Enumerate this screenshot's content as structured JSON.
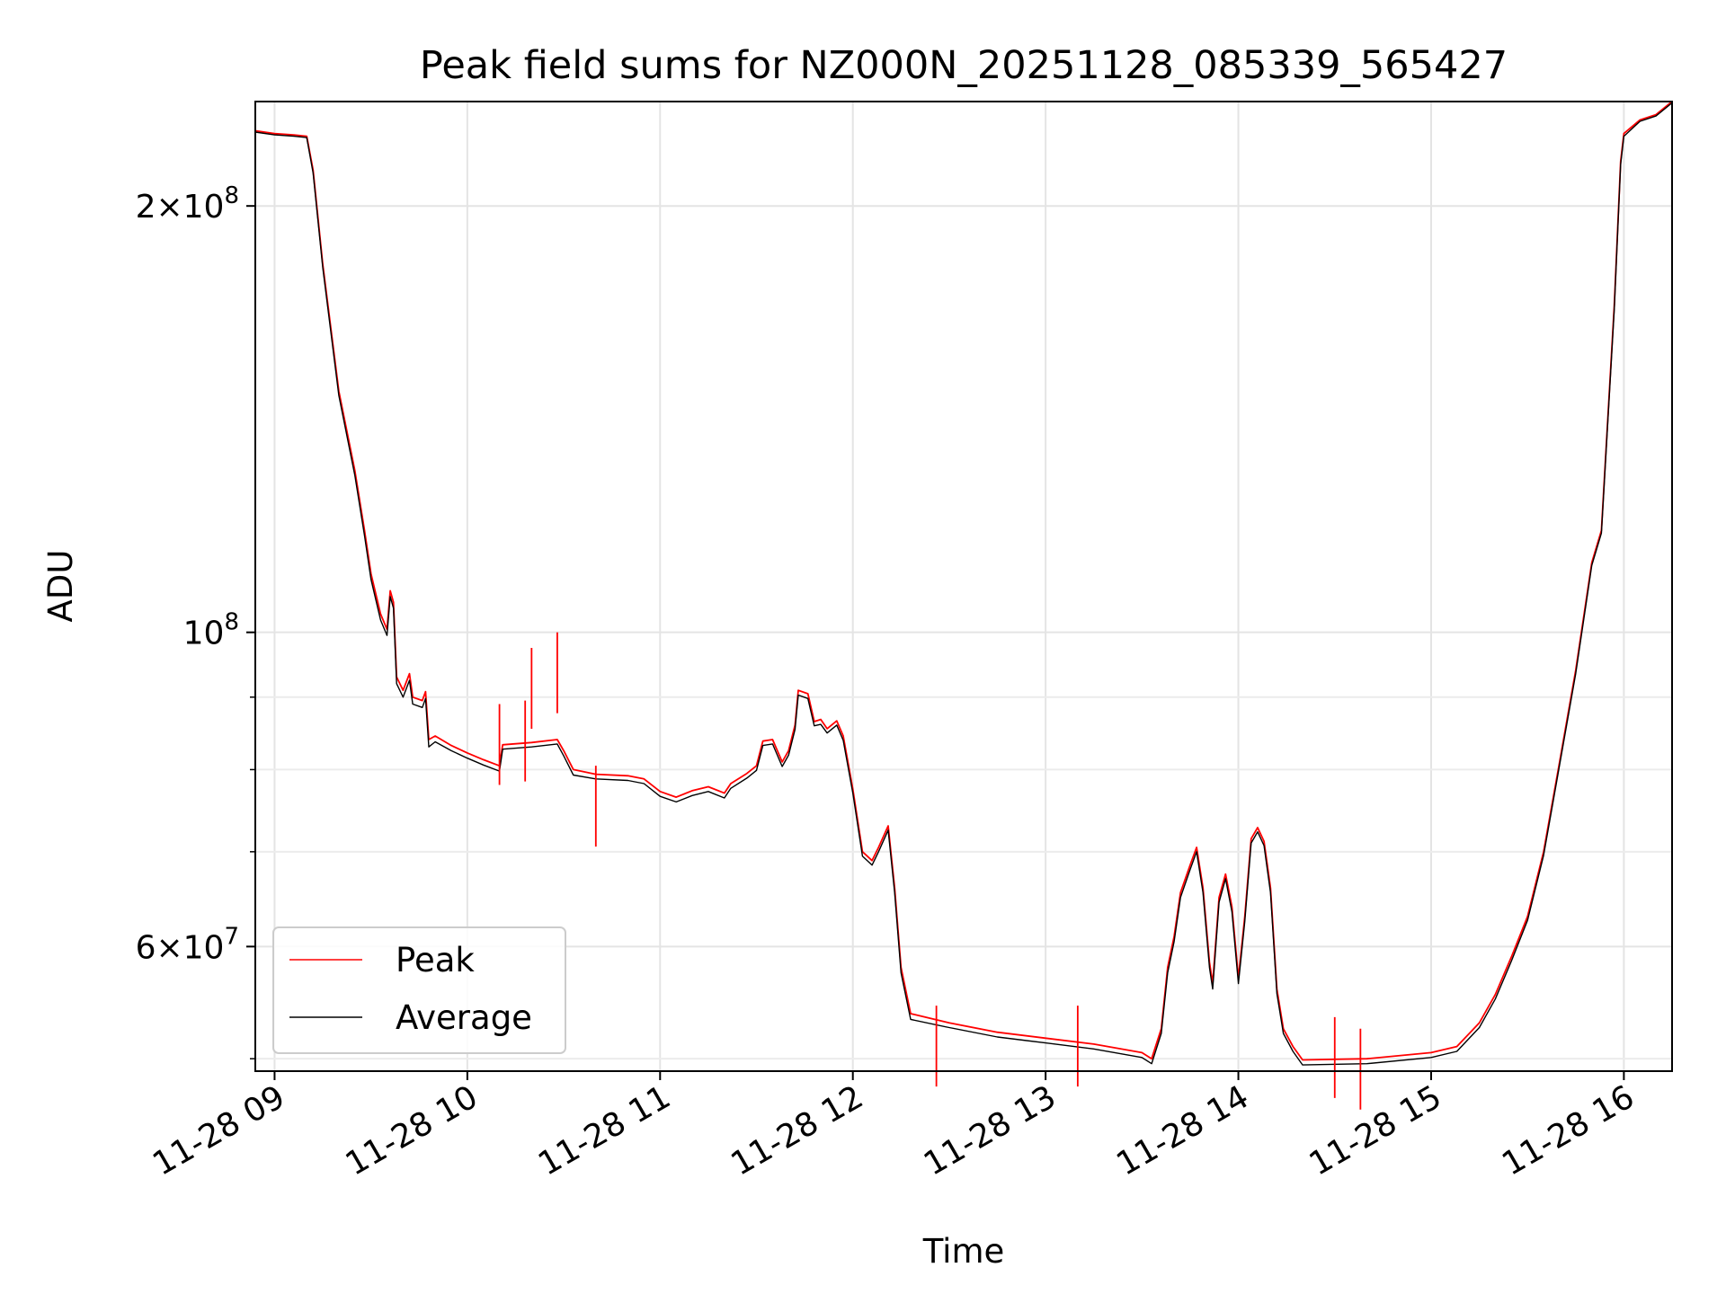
{
  "chart_data": {
    "type": "line",
    "title": "Peak field sums for NZ000N_20251128_085339_565427",
    "xlabel": "Time",
    "ylabel": "ADU",
    "y_scale": "log",
    "xlim": [
      "2025-11-28 08:54",
      "2025-11-28 16:15"
    ],
    "ylim": [
      49000000,
      237000000
    ],
    "grid": true,
    "legend_position": "lower-left",
    "x_ticks": [
      {
        "t": "2025-11-28 09:00",
        "label": "11-28 09"
      },
      {
        "t": "2025-11-28 10:00",
        "label": "11-28 10"
      },
      {
        "t": "2025-11-28 11:00",
        "label": "11-28 11"
      },
      {
        "t": "2025-11-28 12:00",
        "label": "11-28 12"
      },
      {
        "t": "2025-11-28 13:00",
        "label": "11-28 13"
      },
      {
        "t": "2025-11-28 14:00",
        "label": "11-28 14"
      },
      {
        "t": "2025-11-28 15:00",
        "label": "11-28 15"
      },
      {
        "t": "2025-11-28 16:00",
        "label": "11-28 16"
      }
    ],
    "y_major_ticks": [
      {
        "value": 60000000,
        "base": "6×10",
        "exp": "7"
      },
      {
        "value": 100000000,
        "base": "10",
        "exp": "8"
      },
      {
        "value": 200000000,
        "base": "2×10",
        "exp": "8"
      }
    ],
    "y_minor_ticks": [
      50000000,
      70000000,
      80000000,
      90000000
    ],
    "series": [
      {
        "name": "Peak",
        "color": "#ff0000",
        "points": [
          [
            "2025-11-28 08:54",
            226000000
          ],
          [
            "2025-11-28 09:00",
            225000000
          ],
          [
            "2025-11-28 09:06",
            224500000
          ],
          [
            "2025-11-28 09:10",
            224000000
          ],
          [
            "2025-11-28 09:12",
            212000000
          ],
          [
            "2025-11-28 09:15",
            182000000
          ],
          [
            "2025-11-28 09:20",
            148000000
          ],
          [
            "2025-11-28 09:25",
            130000000
          ],
          [
            "2025-11-28 09:28",
            118000000
          ],
          [
            "2025-11-28 09:30",
            110000000
          ],
          [
            "2025-11-28 09:33",
            103000000
          ],
          [
            "2025-11-28 09:35",
            100500000
          ],
          [
            "2025-11-28 09:36",
            107000000
          ],
          [
            "2025-11-28 09:37",
            105000000
          ],
          [
            "2025-11-28 09:38",
            93000000
          ],
          [
            "2025-11-28 09:40",
            91000000
          ],
          [
            "2025-11-28 09:42",
            93500000
          ],
          [
            "2025-11-28 09:43",
            90000000
          ],
          [
            "2025-11-28 09:46",
            89500000
          ],
          [
            "2025-11-28 09:47",
            90800000
          ],
          [
            "2025-11-28 09:48",
            84000000
          ],
          [
            "2025-11-28 09:50",
            84500000
          ],
          [
            "2025-11-28 09:55",
            83200000
          ],
          [
            "2025-11-28 10:00",
            82200000
          ],
          [
            "2025-11-28 10:05",
            81300000
          ],
          [
            "2025-11-28 10:10",
            80500000
          ],
          [
            "2025-11-28 10:11",
            83300000
          ],
          [
            "2025-11-28 10:20",
            83600000
          ],
          [
            "2025-11-28 10:28",
            84000000
          ],
          [
            "2025-11-28 10:30",
            82500000
          ],
          [
            "2025-11-28 10:33",
            80000000
          ],
          [
            "2025-11-28 10:40",
            79400000
          ],
          [
            "2025-11-28 10:50",
            79200000
          ],
          [
            "2025-11-28 10:55",
            78800000
          ],
          [
            "2025-11-28 11:00",
            77200000
          ],
          [
            "2025-11-28 11:05",
            76500000
          ],
          [
            "2025-11-28 11:10",
            77300000
          ],
          [
            "2025-11-28 11:15",
            77800000
          ],
          [
            "2025-11-28 11:20",
            77000000
          ],
          [
            "2025-11-28 11:22",
            78200000
          ],
          [
            "2025-11-28 11:27",
            79500000
          ],
          [
            "2025-11-28 11:30",
            80500000
          ],
          [
            "2025-11-28 11:32",
            83800000
          ],
          [
            "2025-11-28 11:35",
            84000000
          ],
          [
            "2025-11-28 11:38",
            81000000
          ],
          [
            "2025-11-28 11:40",
            82500000
          ],
          [
            "2025-11-28 11:42",
            86000000
          ],
          [
            "2025-11-28 11:43",
            91000000
          ],
          [
            "2025-11-28 11:46",
            90500000
          ],
          [
            "2025-11-28 11:48",
            86500000
          ],
          [
            "2025-11-28 11:50",
            86800000
          ],
          [
            "2025-11-28 11:52",
            85500000
          ],
          [
            "2025-11-28 11:55",
            86600000
          ],
          [
            "2025-11-28 11:57",
            84500000
          ],
          [
            "2025-11-28 12:00",
            77500000
          ],
          [
            "2025-11-28 12:03",
            70000000
          ],
          [
            "2025-11-28 12:06",
            69000000
          ],
          [
            "2025-11-28 12:08",
            70500000
          ],
          [
            "2025-11-28 12:11",
            73000000
          ],
          [
            "2025-11-28 12:13",
            66000000
          ],
          [
            "2025-11-28 12:15",
            58000000
          ],
          [
            "2025-11-28 12:18",
            53800000
          ],
          [
            "2025-11-28 12:30",
            53000000
          ],
          [
            "2025-11-28 12:45",
            52200000
          ],
          [
            "2025-11-28 13:00",
            51700000
          ],
          [
            "2025-11-28 13:15",
            51200000
          ],
          [
            "2025-11-28 13:30",
            50500000
          ],
          [
            "2025-11-28 13:33",
            50000000
          ],
          [
            "2025-11-28 13:36",
            52500000
          ],
          [
            "2025-11-28 13:38",
            58000000
          ],
          [
            "2025-11-28 13:40",
            61000000
          ],
          [
            "2025-11-28 13:42",
            65500000
          ],
          [
            "2025-11-28 13:45",
            68500000
          ],
          [
            "2025-11-28 13:47",
            70500000
          ],
          [
            "2025-11-28 13:49",
            66000000
          ],
          [
            "2025-11-28 13:51",
            58500000
          ],
          [
            "2025-11-28 13:52",
            56500000
          ],
          [
            "2025-11-28 13:54",
            65000000
          ],
          [
            "2025-11-28 13:56",
            67500000
          ],
          [
            "2025-11-28 13:58",
            64000000
          ],
          [
            "2025-11-28 14:00",
            57000000
          ],
          [
            "2025-11-28 14:02",
            63000000
          ],
          [
            "2025-11-28 14:04",
            71500000
          ],
          [
            "2025-11-28 14:06",
            72800000
          ],
          [
            "2025-11-28 14:08",
            71200000
          ],
          [
            "2025-11-28 14:10",
            66000000
          ],
          [
            "2025-11-28 14:12",
            56000000
          ],
          [
            "2025-11-28 14:14",
            52500000
          ],
          [
            "2025-11-28 14:17",
            51000000
          ],
          [
            "2025-11-28 14:20",
            49900000
          ],
          [
            "2025-11-28 14:40",
            50000000
          ],
          [
            "2025-11-28 15:00",
            50500000
          ],
          [
            "2025-11-28 15:08",
            51000000
          ],
          [
            "2025-11-28 15:15",
            53000000
          ],
          [
            "2025-11-28 15:20",
            55500000
          ],
          [
            "2025-11-28 15:25",
            59000000
          ],
          [
            "2025-11-28 15:30",
            63000000
          ],
          [
            "2025-11-28 15:35",
            70000000
          ],
          [
            "2025-11-28 15:40",
            81000000
          ],
          [
            "2025-11-28 15:45",
            94000000
          ],
          [
            "2025-11-28 15:50",
            112000000
          ],
          [
            "2025-11-28 15:53",
            118000000
          ],
          [
            "2025-11-28 15:57",
            170000000
          ],
          [
            "2025-11-28 15:59",
            215000000
          ],
          [
            "2025-11-28 16:00",
            225000000
          ],
          [
            "2025-11-28 16:05",
            230000000
          ],
          [
            "2025-11-28 16:10",
            232000000
          ],
          [
            "2025-11-28 16:15",
            237000000
          ]
        ]
      },
      {
        "name": "Average",
        "color": "#000000",
        "points": [
          [
            "2025-11-28 08:54",
            225500000
          ],
          [
            "2025-11-28 09:00",
            224500000
          ],
          [
            "2025-11-28 09:06",
            224000000
          ],
          [
            "2025-11-28 09:10",
            223500000
          ],
          [
            "2025-11-28 09:12",
            211000000
          ],
          [
            "2025-11-28 09:15",
            181000000
          ],
          [
            "2025-11-28 09:20",
            147000000
          ],
          [
            "2025-11-28 09:25",
            129000000
          ],
          [
            "2025-11-28 09:28",
            117000000
          ],
          [
            "2025-11-28 09:30",
            109000000
          ],
          [
            "2025-11-28 09:33",
            102000000
          ],
          [
            "2025-11-28 09:35",
            99500000
          ],
          [
            "2025-11-28 09:36",
            106000000
          ],
          [
            "2025-11-28 09:37",
            104000000
          ],
          [
            "2025-11-28 09:38",
            92000000
          ],
          [
            "2025-11-28 09:40",
            90000000
          ],
          [
            "2025-11-28 09:42",
            92500000
          ],
          [
            "2025-11-28 09:43",
            89000000
          ],
          [
            "2025-11-28 09:46",
            88500000
          ],
          [
            "2025-11-28 09:47",
            89800000
          ],
          [
            "2025-11-28 09:48",
            83000000
          ],
          [
            "2025-11-28 09:50",
            83700000
          ],
          [
            "2025-11-28 09:55",
            82500000
          ],
          [
            "2025-11-28 10:00",
            81500000
          ],
          [
            "2025-11-28 10:05",
            80600000
          ],
          [
            "2025-11-28 10:10",
            79800000
          ],
          [
            "2025-11-28 10:11",
            82700000
          ],
          [
            "2025-11-28 10:20",
            83000000
          ],
          [
            "2025-11-28 10:28",
            83400000
          ],
          [
            "2025-11-28 10:30",
            81800000
          ],
          [
            "2025-11-28 10:33",
            79300000
          ],
          [
            "2025-11-28 10:40",
            78800000
          ],
          [
            "2025-11-28 10:50",
            78600000
          ],
          [
            "2025-11-28 10:55",
            78200000
          ],
          [
            "2025-11-28 11:00",
            76600000
          ],
          [
            "2025-11-28 11:05",
            75900000
          ],
          [
            "2025-11-28 11:10",
            76700000
          ],
          [
            "2025-11-28 11:15",
            77200000
          ],
          [
            "2025-11-28 11:20",
            76400000
          ],
          [
            "2025-11-28 11:22",
            77600000
          ],
          [
            "2025-11-28 11:27",
            78900000
          ],
          [
            "2025-11-28 11:30",
            79900000
          ],
          [
            "2025-11-28 11:32",
            83200000
          ],
          [
            "2025-11-28 11:35",
            83400000
          ],
          [
            "2025-11-28 11:38",
            80400000
          ],
          [
            "2025-11-28 11:40",
            81900000
          ],
          [
            "2025-11-28 11:42",
            85400000
          ],
          [
            "2025-11-28 11:43",
            90300000
          ],
          [
            "2025-11-28 11:46",
            89800000
          ],
          [
            "2025-11-28 11:48",
            85900000
          ],
          [
            "2025-11-28 11:50",
            86100000
          ],
          [
            "2025-11-28 11:52",
            84900000
          ],
          [
            "2025-11-28 11:55",
            86000000
          ],
          [
            "2025-11-28 11:57",
            83900000
          ],
          [
            "2025-11-28 12:00",
            77000000
          ],
          [
            "2025-11-28 12:03",
            69500000
          ],
          [
            "2025-11-28 12:06",
            68500000
          ],
          [
            "2025-11-28 12:08",
            70000000
          ],
          [
            "2025-11-28 12:11",
            72500000
          ],
          [
            "2025-11-28 12:13",
            65500000
          ],
          [
            "2025-11-28 12:15",
            57500000
          ],
          [
            "2025-11-28 12:18",
            53300000
          ],
          [
            "2025-11-28 12:30",
            52600000
          ],
          [
            "2025-11-28 12:45",
            51800000
          ],
          [
            "2025-11-28 13:00",
            51300000
          ],
          [
            "2025-11-28 13:15",
            50800000
          ],
          [
            "2025-11-28 13:30",
            50100000
          ],
          [
            "2025-11-28 13:33",
            49600000
          ],
          [
            "2025-11-28 13:36",
            52100000
          ],
          [
            "2025-11-28 13:38",
            57500000
          ],
          [
            "2025-11-28 13:40",
            60500000
          ],
          [
            "2025-11-28 13:42",
            65000000
          ],
          [
            "2025-11-28 13:45",
            68000000
          ],
          [
            "2025-11-28 13:47",
            70000000
          ],
          [
            "2025-11-28 13:49",
            65500000
          ],
          [
            "2025-11-28 13:51",
            58000000
          ],
          [
            "2025-11-28 13:52",
            56000000
          ],
          [
            "2025-11-28 13:54",
            64500000
          ],
          [
            "2025-11-28 13:56",
            67000000
          ],
          [
            "2025-11-28 13:58",
            63500000
          ],
          [
            "2025-11-28 14:00",
            56500000
          ],
          [
            "2025-11-28 14:02",
            62500000
          ],
          [
            "2025-11-28 14:04",
            71000000
          ],
          [
            "2025-11-28 14:06",
            72300000
          ],
          [
            "2025-11-28 14:08",
            70700000
          ],
          [
            "2025-11-28 14:10",
            65500000
          ],
          [
            "2025-11-28 14:12",
            55600000
          ],
          [
            "2025-11-28 14:14",
            52100000
          ],
          [
            "2025-11-28 14:17",
            50600000
          ],
          [
            "2025-11-28 14:20",
            49500000
          ],
          [
            "2025-11-28 14:40",
            49600000
          ],
          [
            "2025-11-28 15:00",
            50100000
          ],
          [
            "2025-11-28 15:08",
            50600000
          ],
          [
            "2025-11-28 15:15",
            52600000
          ],
          [
            "2025-11-28 15:20",
            55100000
          ],
          [
            "2025-11-28 15:25",
            58600000
          ],
          [
            "2025-11-28 15:30",
            62600000
          ],
          [
            "2025-11-28 15:35",
            69600000
          ],
          [
            "2025-11-28 15:40",
            80600000
          ],
          [
            "2025-11-28 15:45",
            93500000
          ],
          [
            "2025-11-28 15:50",
            111500000
          ],
          [
            "2025-11-28 15:53",
            117500000
          ],
          [
            "2025-11-28 15:57",
            169000000
          ],
          [
            "2025-11-28 15:59",
            214000000
          ],
          [
            "2025-11-28 16:00",
            224000000
          ],
          [
            "2025-11-28 16:05",
            229500000
          ],
          [
            "2025-11-28 16:10",
            231500000
          ],
          [
            "2025-11-28 16:15",
            236500000
          ]
        ]
      }
    ],
    "peak_spikes": [
      [
        "2025-11-28 10:10",
        89000000
      ],
      [
        "2025-11-28 10:18",
        89500000
      ],
      [
        "2025-11-28 10:20",
        97500000
      ],
      [
        "2025-11-28 10:28",
        100000000
      ],
      [
        "2025-11-28 10:40",
        80500000
      ],
      [
        "2025-11-28 12:26",
        54500000
      ],
      [
        "2025-11-28 13:10",
        54500000
      ],
      [
        "2025-11-28 14:30",
        53500000
      ],
      [
        "2025-11-28 14:38",
        52500000
      ]
    ]
  }
}
